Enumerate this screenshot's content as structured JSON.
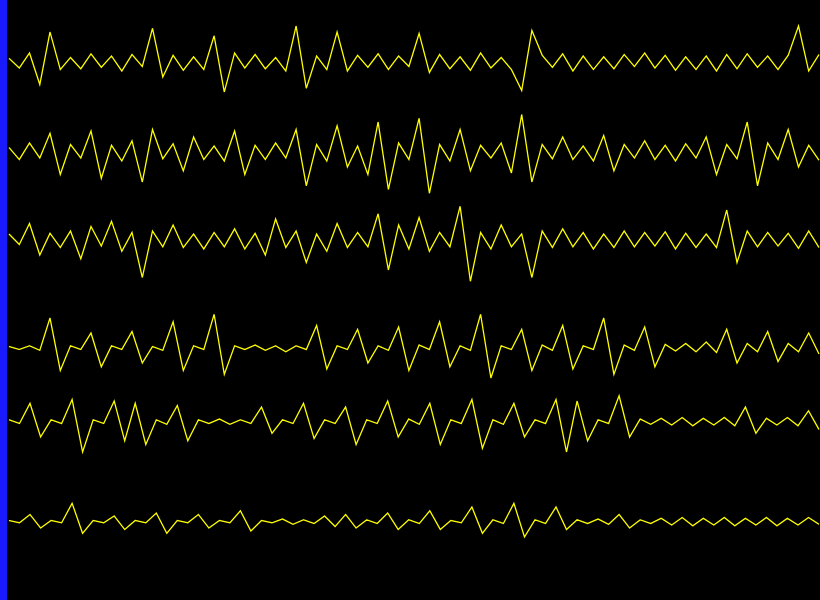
{
  "traces": [
    {
      "color": "#ffff00",
      "values": [
        5,
        -8,
        12,
        -30,
        40,
        -10,
        6,
        -9,
        11,
        -7,
        8,
        -12,
        10,
        -6,
        45,
        -20,
        9,
        -11,
        7,
        -10,
        35,
        -40,
        12,
        -8,
        10,
        -9,
        6,
        -12,
        48,
        -35,
        8,
        -10,
        40,
        -12,
        9,
        -7,
        11,
        -10,
        8,
        -6,
        38,
        -14,
        10,
        -9,
        7,
        -11,
        12,
        -8,
        6,
        -10,
        -38,
        42,
        9,
        -7,
        11,
        -12,
        8,
        -10,
        7,
        -9,
        10,
        -6,
        12,
        -8,
        9,
        -11,
        7,
        -10,
        8,
        -12,
        10,
        -9,
        11,
        -7,
        8,
        -10,
        9,
        48,
        -12,
        10
      ]
    },
    {
      "color": "#ffff00",
      "values": [
        6,
        -10,
        12,
        -8,
        25,
        -30,
        10,
        -8,
        28,
        -35,
        9,
        -12,
        15,
        -40,
        30,
        -9,
        11,
        -25,
        20,
        -10,
        8,
        -12,
        28,
        -30,
        9,
        -10,
        12,
        -8,
        30,
        -45,
        10,
        -12,
        35,
        -20,
        8,
        -30,
        40,
        -50,
        12,
        -10,
        45,
        -55,
        10,
        -12,
        30,
        -25,
        9,
        -8,
        12,
        -28,
        50,
        -40,
        10,
        -9,
        20,
        -10,
        8,
        -12,
        22,
        -25,
        10,
        -8,
        15,
        -10,
        9,
        -12,
        11,
        -8,
        20,
        -30,
        10,
        -9,
        40,
        -45,
        12,
        -10,
        30,
        -20,
        9,
        -11
      ]
    },
    {
      "color": "#ffff00",
      "values": [
        8,
        -6,
        22,
        -20,
        9,
        -10,
        12,
        -25,
        18,
        -8,
        25,
        -15,
        10,
        -50,
        12,
        -9,
        20,
        -10,
        8,
        -12,
        10,
        -9,
        15,
        -12,
        9,
        -20,
        28,
        -10,
        12,
        -30,
        8,
        -15,
        22,
        -10,
        10,
        -9,
        35,
        -40,
        20,
        -12,
        30,
        -15,
        10,
        -9,
        45,
        -55,
        10,
        -12,
        20,
        -9,
        8,
        -50,
        12,
        -10,
        15,
        -9,
        10,
        -12,
        8,
        -10,
        12,
        -9,
        10,
        -8,
        11,
        -12,
        9,
        -10,
        8,
        -10,
        40,
        -30,
        12,
        -9,
        10,
        -8,
        9,
        -11,
        12,
        -10
      ]
    },
    {
      "color": "#ffff00",
      "values": [
        2,
        -2,
        3,
        -3,
        40,
        -30,
        3,
        -2,
        20,
        -25,
        3,
        -2,
        22,
        -20,
        2,
        -3,
        35,
        -30,
        3,
        -2,
        45,
        -35,
        3,
        -2,
        4,
        -3,
        3,
        -5,
        3,
        -2,
        30,
        -28,
        3,
        -2,
        25,
        -20,
        3,
        -3,
        28,
        -30,
        4,
        -2,
        35,
        -25,
        3,
        -3,
        45,
        -40,
        3,
        -2,
        25,
        -30,
        4,
        -3,
        30,
        -28,
        3,
        -2,
        40,
        -35,
        4,
        -3,
        28,
        -25,
        5,
        -4,
        6,
        -5,
        8,
        -6,
        25,
        -20,
        6,
        -5,
        22,
        -18,
        6,
        -5,
        20,
        -8
      ]
    },
    {
      "color": "#ffff00",
      "values": [
        3,
        -2,
        25,
        -20,
        3,
        -2,
        30,
        -40,
        3,
        -2,
        28,
        -25,
        25,
        -30,
        3,
        -3,
        22,
        -25,
        3,
        -2,
        4,
        -3,
        3,
        -2,
        20,
        -15,
        3,
        -2,
        25,
        -22,
        3,
        -2,
        20,
        -30,
        3,
        -2,
        28,
        -20,
        4,
        -3,
        25,
        -30,
        3,
        -2,
        30,
        -35,
        3,
        -3,
        25,
        -20,
        3,
        -2,
        30,
        -40,
        28,
        -25,
        3,
        -2,
        35,
        -20,
        4,
        -3,
        5,
        -4,
        6,
        -5,
        5,
        -4,
        6,
        -5,
        20,
        -15,
        5,
        -4,
        6,
        -5,
        15,
        -10
      ]
    },
    {
      "color": "#ffff00",
      "values": [
        2,
        -1,
        10,
        -8,
        2,
        -1,
        25,
        -15,
        2,
        -1,
        8,
        -10,
        2,
        -1,
        12,
        -15,
        2,
        -1,
        10,
        -8,
        2,
        -1,
        15,
        -12,
        2,
        -1,
        4,
        -3,
        3,
        -2,
        8,
        -6,
        10,
        -8,
        3,
        -2,
        12,
        -10,
        3,
        -2,
        15,
        -10,
        2,
        -1,
        20,
        -15,
        3,
        -2,
        25,
        -20,
        3,
        -2,
        20,
        -10,
        3,
        -2,
        4,
        -3,
        10,
        -8,
        3,
        -2,
        5,
        -4,
        6,
        -5,
        5,
        -4,
        6,
        -5,
        5,
        -4,
        6,
        -5,
        5,
        -4,
        6,
        -3
      ]
    }
  ]
}
